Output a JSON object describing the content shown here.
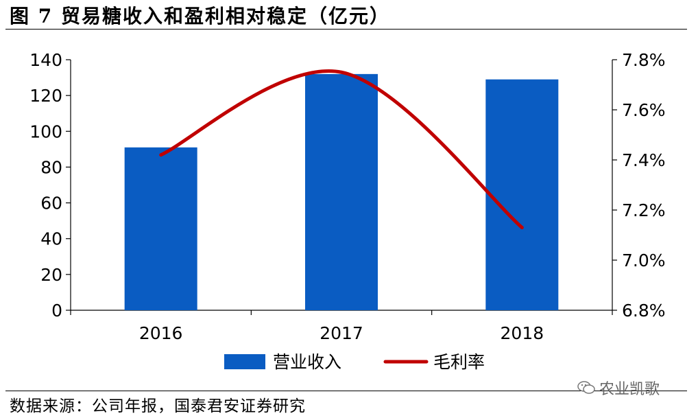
{
  "figure": {
    "title": "图 7 贸易糖收入和盈利相对稳定（亿元）",
    "source": "数据来源：公司年报，国泰君安证券研究",
    "watermark": "农业凯歌",
    "watermark_icon": "wechat-icon"
  },
  "chart_data": {
    "type": "bar",
    "categories": [
      "2016",
      "2017",
      "2018"
    ],
    "series": [
      {
        "name": "营业收入",
        "type": "bar",
        "axis": "left",
        "values": [
          91,
          132,
          129
        ],
        "color": "#0a5cc2"
      },
      {
        "name": "毛利率",
        "type": "line",
        "axis": "right",
        "values": [
          7.42,
          7.75,
          7.13
        ],
        "unit": "%",
        "color": "#c00000"
      }
    ],
    "y_left": {
      "ylim": [
        0,
        140
      ],
      "ticks": [
        0,
        20,
        40,
        60,
        80,
        100,
        120,
        140
      ]
    },
    "y_right": {
      "ylim": [
        6.8,
        7.8
      ],
      "ticks": [
        6.8,
        7.0,
        7.2,
        7.4,
        7.6,
        7.8
      ],
      "tick_labels": [
        "6.8%",
        "7.0%",
        "7.2%",
        "7.4%",
        "7.6%",
        "7.8%"
      ]
    },
    "legend": {
      "placement": "bottom"
    },
    "grid": false
  }
}
